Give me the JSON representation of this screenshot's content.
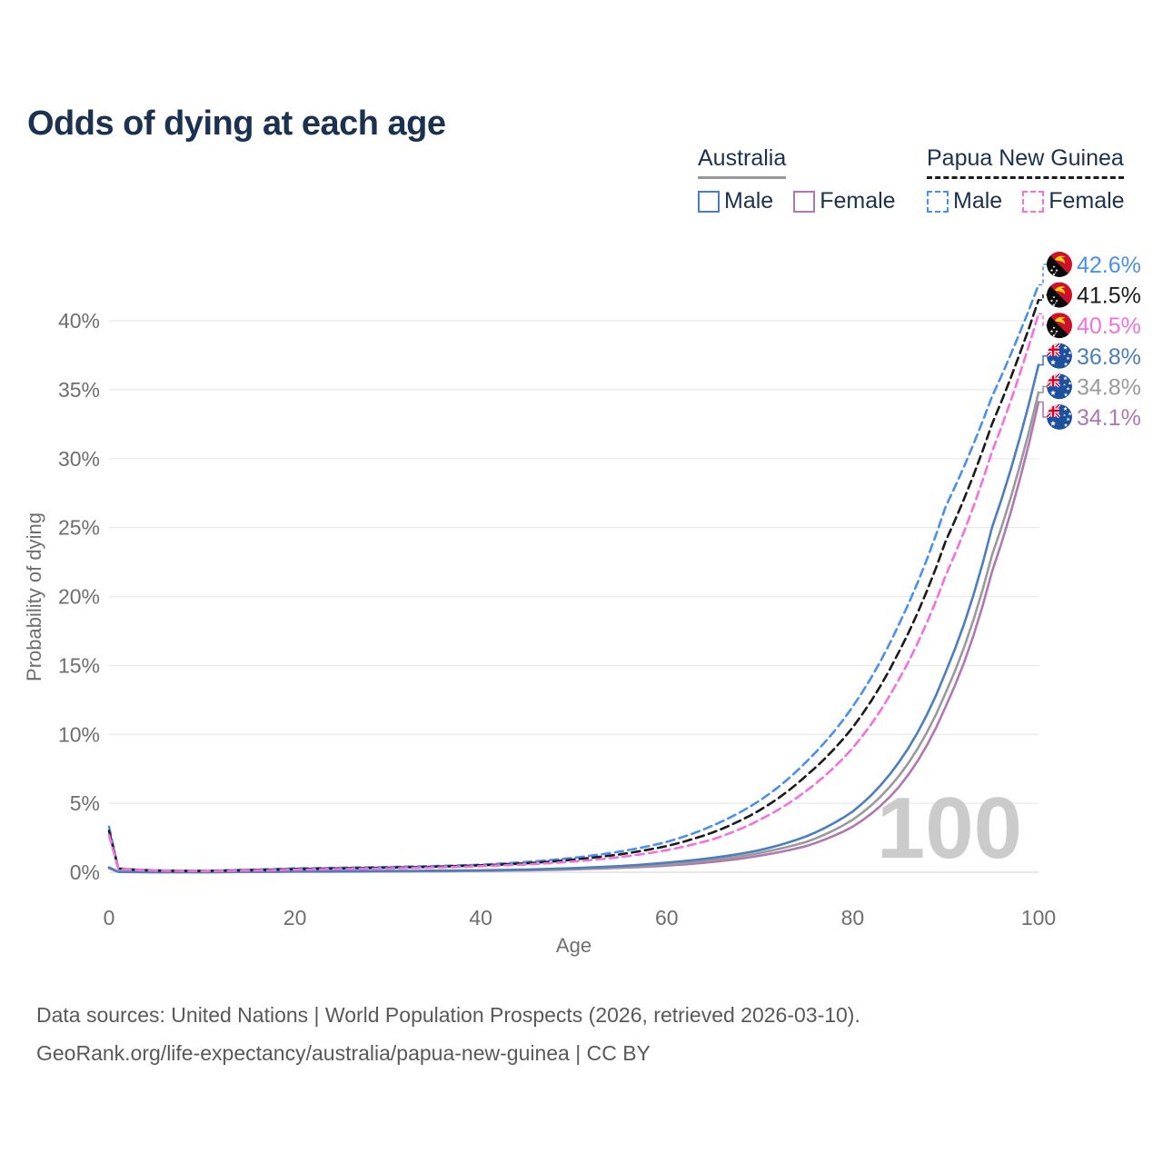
{
  "title": "Odds of dying at each age",
  "watermark_age": "100",
  "legend": {
    "groups": [
      {
        "label": "Australia",
        "line_style": "solid",
        "underline_color": "#999999",
        "items": [
          {
            "label": "Male",
            "color": "#4a7ebd",
            "dash": false
          },
          {
            "label": "Female",
            "color": "#b077b3",
            "dash": false
          }
        ]
      },
      {
        "label": "Papua New Guinea",
        "line_style": "dashed",
        "underline_color": "#1b1b1b",
        "items": [
          {
            "label": "Male",
            "color": "#4a90ea",
            "dash": true
          },
          {
            "label": "Female",
            "color": "#f470dd",
            "dash": true
          }
        ]
      }
    ]
  },
  "footer": {
    "line1": "Data sources: United Nations | World Population Prospects (2026, retrieved 2026-03-10).",
    "line2": "GeoRank.org/life-expectancy/australia/papua-new-guinea | CC BY"
  },
  "chart_data": {
    "type": "line",
    "title": "Odds of dying at each age",
    "xlabel": "Age",
    "ylabel": "Probability of dying",
    "xlim": [
      0,
      100
    ],
    "ylim": [
      0,
      44
    ],
    "xticks": [
      0,
      20,
      40,
      60,
      80,
      100
    ],
    "yticks": [
      "0%",
      "5%",
      "10%",
      "15%",
      "20%",
      "25%",
      "30%",
      "35%",
      "40%"
    ],
    "ytick_values": [
      0,
      5,
      10,
      15,
      20,
      25,
      30,
      35,
      40
    ],
    "grid": true,
    "legend_position": "top-right",
    "ages": [
      0,
      1,
      5,
      10,
      15,
      20,
      25,
      30,
      35,
      40,
      45,
      50,
      55,
      60,
      65,
      70,
      75,
      80,
      85,
      90,
      95,
      100
    ],
    "series": [
      {
        "name": "Papua New Guinea Male",
        "country": "Papua New Guinea",
        "sex": "Male",
        "color": "#4a90ea",
        "dash": true,
        "flag": "png",
        "end_label": "42.6%",
        "end_value": 42.6,
        "values": [
          3.3,
          0.28,
          0.13,
          0.1,
          0.18,
          0.28,
          0.33,
          0.38,
          0.45,
          0.55,
          0.75,
          1.05,
          1.5,
          2.2,
          3.4,
          5.2,
          8.0,
          12.0,
          18.0,
          26.5,
          34.5,
          42.6
        ]
      },
      {
        "name": "Papua New Guinea Both sexes",
        "country": "Papua New Guinea",
        "sex": "Both sexes",
        "color": "#1b1b1b",
        "dash": true,
        "flag": "png",
        "end_label": "41.5%",
        "end_value": 41.5,
        "values": [
          3.0,
          0.25,
          0.12,
          0.09,
          0.15,
          0.23,
          0.28,
          0.33,
          0.4,
          0.5,
          0.65,
          0.92,
          1.3,
          1.9,
          2.9,
          4.5,
          7.0,
          10.5,
          16.0,
          24.0,
          32.5,
          41.5
        ]
      },
      {
        "name": "Papua New Guinea Female",
        "country": "Papua New Guinea",
        "sex": "Female",
        "color": "#f470dd",
        "dash": true,
        "flag": "png",
        "end_label": "40.5%",
        "end_value": 40.5,
        "values": [
          2.7,
          0.23,
          0.11,
          0.08,
          0.12,
          0.18,
          0.23,
          0.28,
          0.34,
          0.44,
          0.57,
          0.78,
          1.1,
          1.6,
          2.4,
          3.8,
          5.9,
          9.0,
          14.0,
          21.5,
          30.5,
          40.5
        ]
      },
      {
        "name": "Australia Male",
        "country": "Australia",
        "sex": "Male",
        "color": "#4a7ebd",
        "dash": false,
        "flag": "aus",
        "end_label": "36.8%",
        "end_value": 36.8,
        "values": [
          0.35,
          0.03,
          0.01,
          0.01,
          0.04,
          0.07,
          0.08,
          0.09,
          0.11,
          0.14,
          0.2,
          0.3,
          0.45,
          0.7,
          1.05,
          1.6,
          2.6,
          4.4,
          8.0,
          14.5,
          25.0,
          36.8
        ]
      },
      {
        "name": "Australia Both sexes",
        "country": "Australia",
        "sex": "Both sexes",
        "color": "#9a9a9a",
        "dash": false,
        "flag": "aus",
        "end_label": "34.8%",
        "end_value": 34.8,
        "values": [
          0.32,
          0.027,
          0.009,
          0.009,
          0.03,
          0.05,
          0.06,
          0.07,
          0.09,
          0.12,
          0.17,
          0.25,
          0.38,
          0.58,
          0.9,
          1.4,
          2.2,
          3.8,
          7.0,
          13.0,
          23.0,
          34.8
        ]
      },
      {
        "name": "Australia Female",
        "country": "Australia",
        "sex": "Female",
        "color": "#b077b3",
        "dash": false,
        "flag": "aus",
        "end_label": "34.1%",
        "end_value": 34.1,
        "values": [
          0.29,
          0.024,
          0.008,
          0.008,
          0.02,
          0.035,
          0.045,
          0.055,
          0.07,
          0.1,
          0.14,
          0.21,
          0.32,
          0.48,
          0.75,
          1.2,
          1.9,
          3.3,
          6.2,
          12.0,
          21.8,
          34.1
        ]
      }
    ]
  }
}
